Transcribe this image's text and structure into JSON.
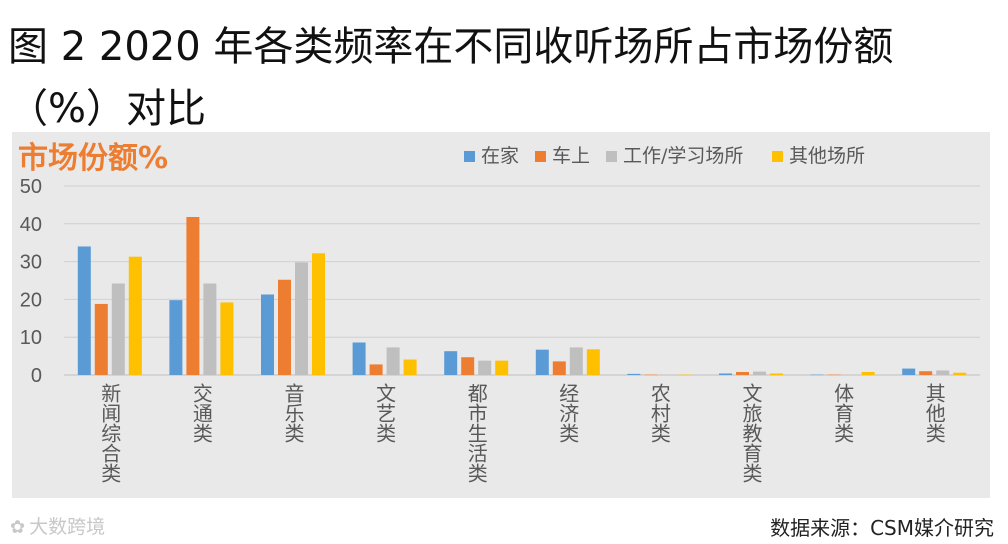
{
  "title_line1": "图 2 2020 年各类频率在不同收听场所占市场份额",
  "title_line2": "（%）对比",
  "source_note": "数据来源：CSM媒介研究",
  "watermark_text": "大数跨境",
  "chart_data": {
    "type": "bar",
    "ylabel": "市场份额%",
    "ylim": [
      0,
      50
    ],
    "yticks": [
      0,
      10,
      20,
      30,
      40,
      50
    ],
    "grid": true,
    "legend_position": "top-right",
    "categories": [
      "新闻综合类",
      "交通类",
      "音乐类",
      "文艺类",
      "都市生活类",
      "经济类",
      "农村类",
      "文旅教育类",
      "体育类",
      "其他类"
    ],
    "series": [
      {
        "name": "在家",
        "color": "#5b9bd5",
        "values": [
          34,
          19.8,
          21.3,
          8.6,
          6.3,
          6.7,
          0.3,
          0.4,
          0.1,
          1.7
        ]
      },
      {
        "name": "车上",
        "color": "#ed7d31",
        "values": [
          18.8,
          41.8,
          25.2,
          2.8,
          4.7,
          3.6,
          0.1,
          0.8,
          0.1,
          1.0
        ]
      },
      {
        "name": "工作/学习场所",
        "color": "#bfbfbf",
        "values": [
          24.2,
          24.2,
          29.8,
          7.3,
          3.8,
          7.3,
          0.1,
          0.9,
          0.1,
          1.2
        ]
      },
      {
        "name": "其他场所",
        "color": "#ffc000",
        "values": [
          31.3,
          19.2,
          32.2,
          4.1,
          3.8,
          6.8,
          0.1,
          0.4,
          0.8,
          0.6
        ]
      }
    ]
  }
}
